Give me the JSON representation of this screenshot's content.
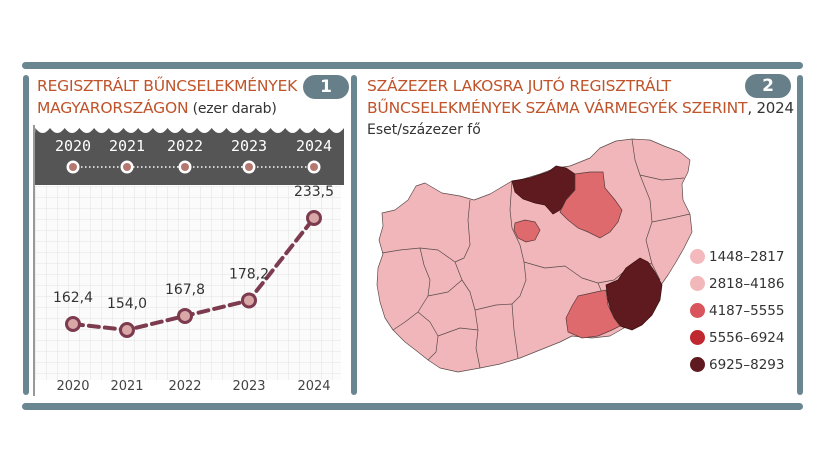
{
  "panel1": {
    "badge": "1",
    "title_line1": "REGISZTRÁLT BŰNCSELEKMÉNYEK",
    "title_line2": "MAGYARORSZÁGON",
    "title_unit": " (ezer darab)",
    "timeline_years": [
      "2020",
      "2021",
      "2022",
      "2023",
      "2024"
    ]
  },
  "panel2": {
    "badge": "2",
    "title_line1": "SZÁZEZER LAKOSRA JUTÓ REGISZTRÁLT",
    "title_line2": "BŰNCSELEKMÉNYEK SZÁMA VÁRMEGYÉK SZERINT",
    "title_suffix": ", 2024",
    "subtitle": "Eset/százezer fő",
    "legend": [
      {
        "label": "1448–2817",
        "color": "#f4b9bd"
      },
      {
        "label": "2818–4186",
        "color": "#f2b7b9"
      },
      {
        "label": "4187–5555",
        "color": "#d9545c"
      },
      {
        "label": "5556–6924",
        "color": "#c0282f"
      },
      {
        "label": "6925–8293",
        "color": "#5e1a1e"
      }
    ]
  },
  "colors": {
    "frame": "#6a8690",
    "title": "#c0532a",
    "line": "#7d3b4f",
    "marker_fill": "#d9a8a6",
    "header_band": "#555555"
  },
  "chart_data": [
    {
      "type": "line",
      "title": "REGISZTRÁLT BŰNCSELEKMÉNYEK MAGYARORSZÁGON (ezer darab)",
      "xlabel": "",
      "ylabel": "ezer darab",
      "categories": [
        "2020",
        "2021",
        "2022",
        "2023",
        "2024"
      ],
      "values": [
        162.4,
        154.0,
        167.8,
        178.2,
        233.5
      ],
      "value_labels": [
        "162,4",
        "154,0",
        "167,8",
        "178,2",
        "233,5"
      ],
      "grid": true,
      "line_style": "dashed"
    },
    {
      "type": "heatmap",
      "title": "SZÁZEZER LAKOSRA JUTÓ REGISZTRÁLT BŰNCSELEKMÉNYEK SZÁMA VÁRMEGYÉK SZERINT, 2024",
      "subtitle": "Eset/százezer fő",
      "legend_bins": [
        "1448–2817",
        "2818–4186",
        "4187–5555",
        "5556–6924",
        "6925–8293"
      ],
      "legend_position": "right",
      "regions_highlighted": [
        {
          "region": "Nógrád (north-central)",
          "bin": "6925–8293"
        },
        {
          "region": "Békés (south-east)",
          "bin": "6925–8293"
        },
        {
          "region": "Heves (north)",
          "bin": "4187–5555"
        },
        {
          "region": "Csongrád-Csanád (south)",
          "bin": "4187–5555"
        },
        {
          "region": "Budapest",
          "bin": "4187–5555"
        }
      ]
    }
  ]
}
